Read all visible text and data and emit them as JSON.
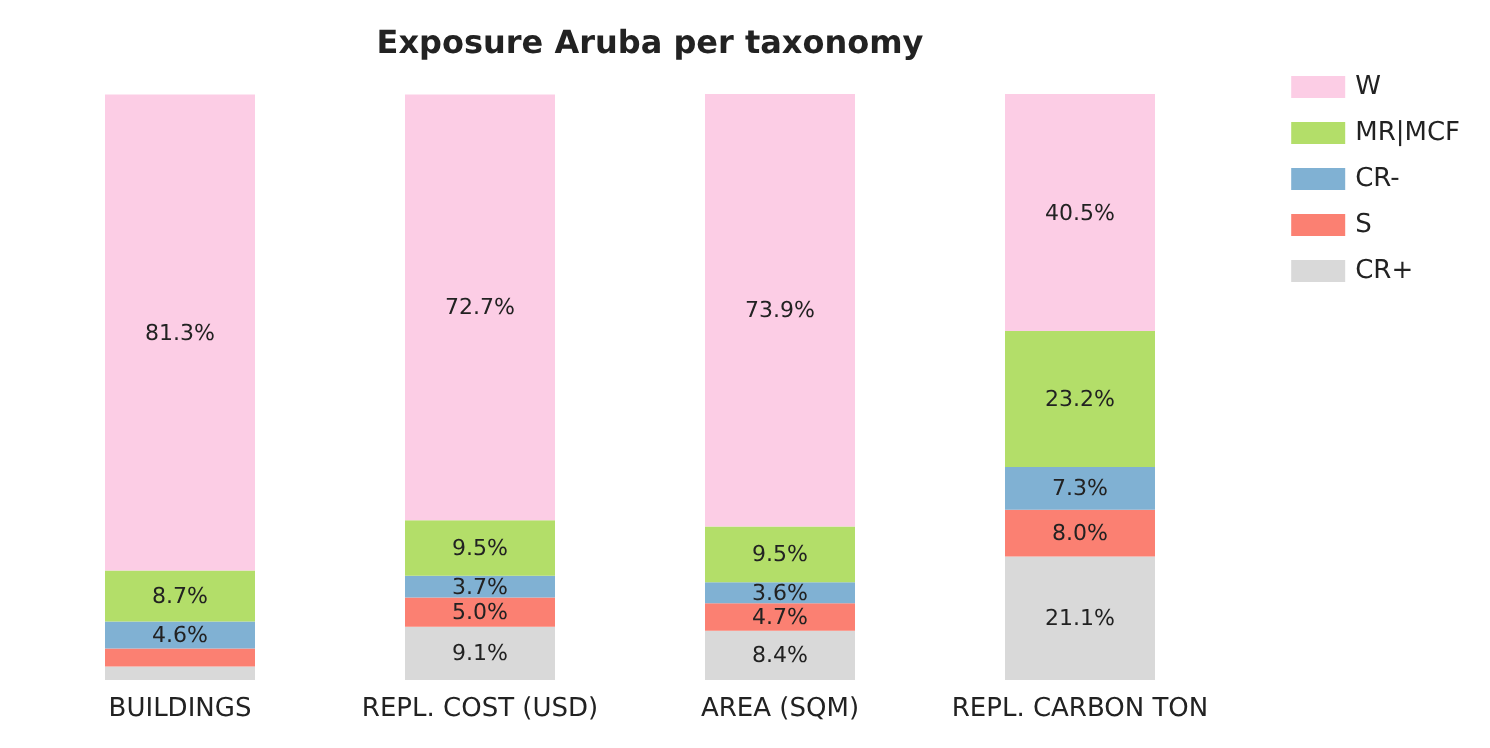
{
  "chart_data": {
    "type": "bar",
    "title": "Exposure Aruba per taxonomy",
    "categories": [
      "BUILDINGS",
      "REPL. COST (USD)",
      "AREA (SQM)",
      "REPL. CARBON TON"
    ],
    "stacked": true,
    "tick_labels": "x",
    "legend": "top right",
    "series": [
      {
        "name": "CR+",
        "color": "#d9d9d9",
        "values": [
          2.3,
          9.1,
          8.4,
          21.1
        ],
        "value_labels": [
          null,
          "9.1%",
          "8.4%",
          "21.1%"
        ]
      },
      {
        "name": "S",
        "color": "#fb8072",
        "values": [
          3.1,
          5.0,
          4.7,
          8.0
        ],
        "value_labels": [
          null,
          "5.0%",
          "4.7%",
          "8.0%"
        ]
      },
      {
        "name": "CR-",
        "color": "#80b1d3",
        "values": [
          4.6,
          3.7,
          3.6,
          7.3
        ],
        "value_labels": [
          "4.6%",
          "3.7%",
          "3.6%",
          "7.3%"
        ]
      },
      {
        "name": "MR|MCF",
        "color": "#b3de69",
        "values": [
          8.7,
          9.5,
          9.5,
          23.2
        ],
        "value_labels": [
          "8.7%",
          "9.5%",
          "9.5%",
          "23.2%"
        ]
      },
      {
        "name": "W",
        "color": "#fccde5",
        "values": [
          81.3,
          72.7,
          73.9,
          40.5
        ],
        "value_labels": [
          "81.3%",
          "72.7%",
          "73.9%",
          "40.5%"
        ]
      }
    ]
  }
}
